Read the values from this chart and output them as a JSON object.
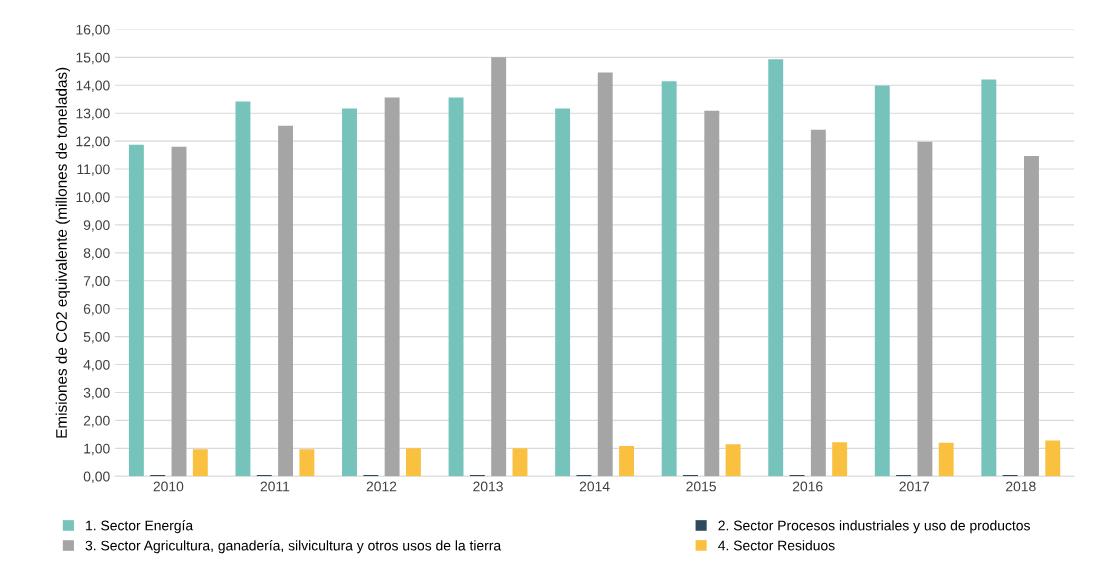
{
  "chart_data": {
    "type": "bar",
    "ylabel": "Emisiones de CO2 equivalente (millones de toneladas)",
    "categories": [
      "2010",
      "2011",
      "2012",
      "2013",
      "2014",
      "2015",
      "2016",
      "2017",
      "2018"
    ],
    "series": [
      {
        "name": "1. Sector Energía",
        "color": "#76c3bb",
        "values": [
          11.87,
          13.42,
          13.17,
          13.56,
          13.17,
          14.14,
          14.93,
          13.99,
          14.21
        ]
      },
      {
        "name": "2. Sector Procesos industriales y uso de productos",
        "color": "#2e4a5e",
        "values": [
          0.05,
          0.05,
          0.05,
          0.05,
          0.05,
          0.05,
          0.05,
          0.05,
          0.05
        ]
      },
      {
        "name": "3. Sector Agricultura, ganadería, silvicultura y otros usos de la tierra",
        "color": "#a5a5a5",
        "values": [
          11.8,
          12.55,
          13.56,
          15.0,
          14.46,
          13.09,
          12.41,
          11.98,
          11.47
        ]
      },
      {
        "name": "4. Sector Residuos",
        "color": "#fac040",
        "values": [
          0.97,
          0.97,
          1.0,
          1.0,
          1.08,
          1.15,
          1.22,
          1.2,
          1.28
        ]
      }
    ],
    "ylim": [
      0,
      16
    ],
    "yticks": [
      {
        "value": 0,
        "label": "0,00"
      },
      {
        "value": 1,
        "label": "1,00"
      },
      {
        "value": 2,
        "label": "2,00"
      },
      {
        "value": 3,
        "label": "3,00"
      },
      {
        "value": 4,
        "label": "4,00"
      },
      {
        "value": 5,
        "label": "5,00"
      },
      {
        "value": 6,
        "label": "6,00"
      },
      {
        "value": 7,
        "label": "7,00"
      },
      {
        "value": 8,
        "label": "8,00"
      },
      {
        "value": 9,
        "label": "9,00"
      },
      {
        "value": 10,
        "label": "10,00"
      },
      {
        "value": 11,
        "label": "11,00"
      },
      {
        "value": 12,
        "label": "12,00"
      },
      {
        "value": 13,
        "label": "13,00"
      },
      {
        "value": 14,
        "label": "14,00"
      },
      {
        "value": 15,
        "label": "15,00"
      },
      {
        "value": 16,
        "label": "16,00"
      }
    ],
    "grid": "y",
    "legend": "bottom"
  }
}
